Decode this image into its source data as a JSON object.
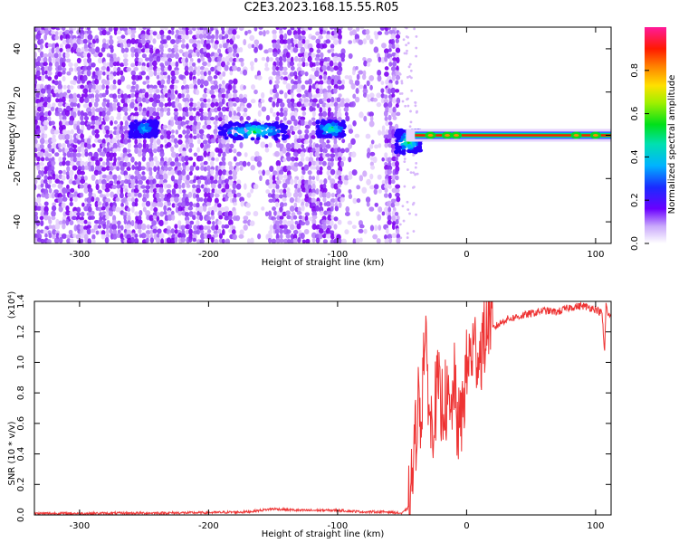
{
  "title": "C2E3.2023.168.15.55.R05",
  "chart_data": [
    {
      "type": "heatmap",
      "xlabel": "Height of straight line (km)",
      "ylabel": "Frequency (Hz)",
      "xlim": [
        -335,
        112
      ],
      "ylim": [
        -50,
        50
      ],
      "xticks": [
        -300,
        -200,
        -100,
        0,
        100
      ],
      "yticks": [
        -40,
        -20,
        0,
        20,
        40
      ],
      "colorbar": {
        "label": "Normalized spectral amplitude",
        "range": [
          0,
          1
        ],
        "ticks": [
          "0.0",
          "0.2",
          "0.4",
          "0.6",
          "0.8"
        ],
        "colormap": "white-purple-blue-cyan-green-yellow-orange-red-magenta"
      },
      "colors": {
        "noise": "#7d00f2",
        "signal_core": "#ff1a00",
        "signal_mid": "#00e01a",
        "signal_low": "#0033ff"
      },
      "regions": [
        {
          "description": "broadband noise",
          "x_range": [
            -335,
            -52
          ],
          "freq_range": [
            -50,
            50
          ],
          "amplitude": 0.1
        },
        {
          "description": "cluster",
          "x_center": -250,
          "freq_center": 3,
          "amplitude": 0.25
        },
        {
          "description": "cluster",
          "x_center": -165,
          "freq_center": 2,
          "amplitude": 0.45
        },
        {
          "description": "cluster",
          "x_center": -105,
          "freq_center": 3,
          "amplitude": 0.45
        },
        {
          "description": "cluster",
          "x_center": -45,
          "freq_center": -3,
          "amplitude": 0.45
        },
        {
          "description": "narrow tone",
          "x_range": [
            -40,
            112
          ],
          "freq_center": 0,
          "amplitude": 0.9
        }
      ]
    },
    {
      "type": "line",
      "xlabel": "Height of straight line (km)",
      "ylabel": "SNR (10 * v/v)",
      "y_multiplier": "(x10⁴)",
      "xlim": [
        -335,
        112
      ],
      "ylim": [
        0,
        1.4
      ],
      "xticks": [
        -300,
        -200,
        -100,
        0,
        100
      ],
      "yticks": [
        "0.0",
        "0.2",
        "0.4",
        "0.6",
        "0.8",
        "1.0",
        "1.2",
        "1.4"
      ],
      "color": "#ee3333",
      "series": [
        {
          "x": [
            -335,
            -300,
            -250,
            -200,
            -170,
            -150,
            -130,
            -120,
            -100,
            -80,
            -60,
            -50,
            -45,
            -42,
            -40,
            -38,
            -35,
            -33,
            -30,
            -28,
            -25,
            -22,
            -20,
            -18,
            -15,
            -12,
            -10,
            -8,
            -5,
            -2,
            0,
            3,
            6,
            10,
            15,
            18,
            20,
            25,
            30,
            40,
            50,
            60,
            70,
            80,
            90,
            100,
            105,
            107,
            108,
            110,
            112
          ],
          "y": [
            0.01,
            0.01,
            0.012,
            0.015,
            0.02,
            0.04,
            0.03,
            0.03,
            0.03,
            0.02,
            0.02,
            0.01,
            0.05,
            0.25,
            0.45,
            0.75,
            0.65,
            1.15,
            0.9,
            0.55,
            0.7,
            0.85,
            0.65,
            0.78,
            0.72,
            0.6,
            0.92,
            0.65,
            0.55,
            0.8,
            0.95,
            1.05,
            1.1,
            1.05,
            1.2,
            1.35,
            1.22,
            1.25,
            1.28,
            1.3,
            1.32,
            1.34,
            1.33,
            1.36,
            1.37,
            1.35,
            1.32,
            1.05,
            1.38,
            1.3,
            1.32
          ]
        }
      ]
    }
  ]
}
